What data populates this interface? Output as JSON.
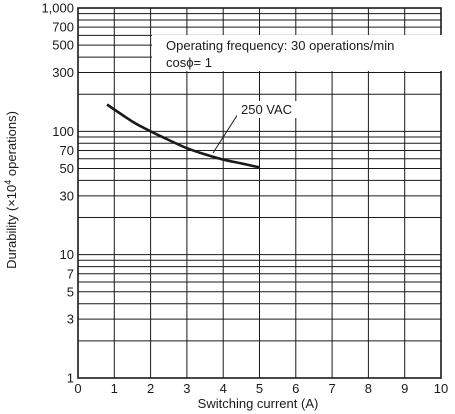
{
  "chart_data": {
    "type": "line",
    "title": "",
    "xlabel": "Switching current (A)",
    "ylabel_main": "Durability (×10",
    "ylabel_sup": "4",
    "ylabel_tail": " operations)",
    "x_scale": "linear",
    "y_scale": "log",
    "xlim": [
      0,
      10
    ],
    "ylim": [
      1,
      1000
    ],
    "x_ticks": [
      0,
      1,
      2,
      3,
      4,
      5,
      6,
      7,
      8,
      9,
      10
    ],
    "x_tick_labels": [
      "0",
      "1",
      "2",
      "3",
      "4",
      "5",
      "6",
      "7",
      "8",
      "9",
      "10"
    ],
    "y_ticks": [
      1,
      3,
      5,
      7,
      10,
      30,
      50,
      70,
      100,
      300,
      500,
      700,
      1000
    ],
    "y_tick_labels": [
      "1",
      "3",
      "5",
      "7",
      "10",
      "30",
      "50",
      "70",
      "100",
      "300",
      "500",
      "700",
      "1,000"
    ],
    "grid": true,
    "series": [
      {
        "name": "250 VAC",
        "x": [
          0.8,
          1.5,
          2,
          2.5,
          3,
          3.5,
          4,
          4.5,
          5
        ],
        "y": [
          165,
          120,
          100,
          85,
          73,
          65,
          59,
          55,
          51
        ]
      }
    ],
    "annotations": {
      "condition_line1": "Operating frequency: 30 operations/min",
      "condition_line2": "cosϕ= 1",
      "series_label": "250 VAC"
    },
    "colors": {
      "line": "#1a1a1a",
      "grid": "#1a1a1a"
    }
  }
}
